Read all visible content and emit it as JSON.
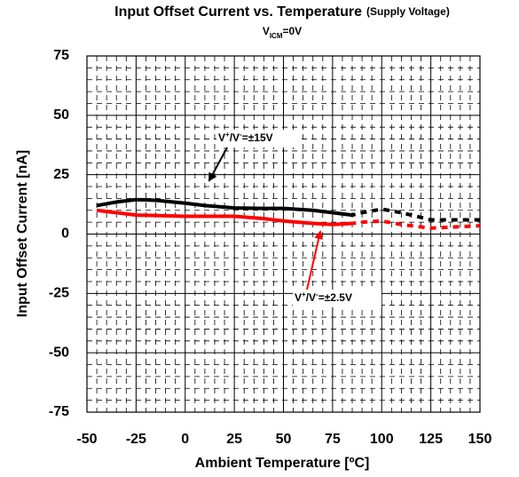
{
  "chart_data": {
    "type": "line",
    "title": "Input Offset Current vs. Temperature",
    "title_note": "(Supply Voltage)",
    "subtitle_parts": [
      "V",
      "ICM",
      "=0V"
    ],
    "x_label": "Ambient Temperature [ºC]",
    "y_label": "Input Offset Current [nA]",
    "xlim": [
      -50,
      150
    ],
    "xticks": [
      -50,
      -25,
      0,
      25,
      50,
      75,
      100,
      125,
      150
    ],
    "ylim": [
      -75,
      75
    ],
    "yticks": [
      -75,
      -50,
      -25,
      0,
      25,
      50,
      75
    ],
    "grid": true,
    "minor_per_major": 5,
    "series": [
      {
        "name_parts": [
          "V",
          "+",
          "/V",
          "-",
          "=±15V"
        ],
        "color": "#000000",
        "dashed_above": 85,
        "x": [
          -45,
          -35,
          -25,
          -15,
          0,
          10,
          25,
          40,
          50,
          65,
          75,
          85,
          90,
          100,
          110,
          125,
          150
        ],
        "values": [
          12,
          13.5,
          14.5,
          14.2,
          13,
          12,
          11,
          10.8,
          10.8,
          10,
          9,
          8,
          9,
          10.5,
          9,
          6,
          6
        ]
      },
      {
        "name_parts": [
          "V",
          "+",
          "/V",
          "-",
          "=±2.5V"
        ],
        "color": "#ff0000",
        "dashed_above": 85,
        "x": [
          -45,
          -35,
          -25,
          -15,
          0,
          10,
          25,
          40,
          50,
          65,
          75,
          85,
          90,
          100,
          110,
          125,
          150
        ],
        "values": [
          10,
          9,
          8,
          7.8,
          7.5,
          7.5,
          7.5,
          6.5,
          5.5,
          4.5,
          4,
          4.5,
          5,
          5.5,
          4,
          2.5,
          3.5
        ]
      }
    ]
  }
}
